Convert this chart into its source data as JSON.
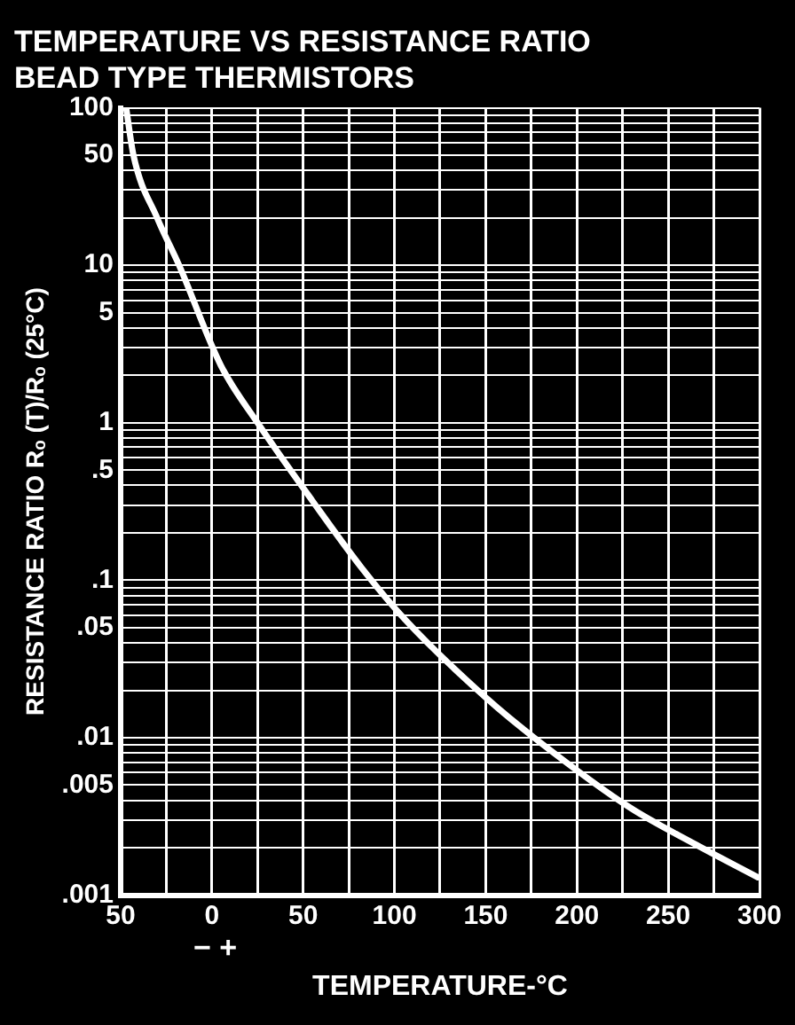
{
  "chart_data": {
    "type": "line",
    "title": "TEMPERATURE VS RESISTANCE RATIO",
    "subtitle": "BEAD TYPE THERMISTORS",
    "xlabel": "TEMPERATURE-°C",
    "ylabel": "RESISTANCE RATIO Rₒ (T)/Rₒ (25°C)",
    "annotations": [
      "− +"
    ],
    "x": [
      -47,
      -43,
      -30,
      -18,
      5,
      25,
      55,
      82,
      106,
      150,
      179,
      229,
      265,
      299
    ],
    "series": [
      {
        "color": "#ffffff",
        "values": [
          100,
          50,
          20,
          10,
          2.3,
          1,
          0.32,
          0.12,
          0.056,
          0.018,
          0.0095,
          0.0036,
          0.0021,
          0.0013
        ]
      }
    ],
    "xlim": [
      -50,
      300
    ],
    "xticks": [
      {
        "value": -50,
        "label": "50"
      },
      {
        "value": -25,
        "label": null
      },
      0,
      {
        "value": 25,
        "label": null
      },
      50,
      {
        "value": 75,
        "label": null
      },
      100,
      {
        "value": 125,
        "label": null
      },
      150,
      {
        "value": 175,
        "label": null
      },
      200,
      {
        "value": 225,
        "label": null
      },
      250,
      {
        "value": 275,
        "label": null
      },
      300
    ],
    "ylim": [
      0.001,
      100
    ],
    "yticks": [
      {
        "value": 0.001,
        "label": ".001"
      },
      {
        "value": 0.002,
        "label": null
      },
      {
        "value": 0.003,
        "label": null
      },
      {
        "value": 0.004,
        "label": null
      },
      {
        "value": 0.005,
        "label": ".005"
      },
      {
        "value": 0.006,
        "label": null
      },
      {
        "value": 0.007,
        "label": null
      },
      {
        "value": 0.008,
        "label": null
      },
      {
        "value": 0.009,
        "label": null
      },
      {
        "value": 0.01,
        "label": ".01"
      },
      {
        "value": 0.02,
        "label": null
      },
      {
        "value": 0.03,
        "label": null
      },
      {
        "value": 0.04,
        "label": null
      },
      {
        "value": 0.05,
        "label": ".05"
      },
      {
        "value": 0.06,
        "label": null
      },
      {
        "value": 0.07,
        "label": null
      },
      {
        "value": 0.08,
        "label": null
      },
      {
        "value": 0.09,
        "label": null
      },
      {
        "value": 0.1,
        "label": ".1"
      },
      {
        "value": 0.2,
        "label": null
      },
      {
        "value": 0.3,
        "label": null
      },
      {
        "value": 0.4,
        "label": null
      },
      {
        "value": 0.5,
        "label": ".5"
      },
      {
        "value": 0.6,
        "label": null
      },
      {
        "value": 0.7,
        "label": null
      },
      {
        "value": 0.8,
        "label": null
      },
      {
        "value": 0.9,
        "label": null
      },
      {
        "value": 1,
        "label": "1"
      },
      {
        "value": 2,
        "label": null
      },
      {
        "value": 3,
        "label": null
      },
      {
        "value": 4,
        "label": null
      },
      {
        "value": 5,
        "label": "5"
      },
      {
        "value": 6,
        "label": null
      },
      {
        "value": 7,
        "label": null
      },
      {
        "value": 8,
        "label": null
      },
      {
        "value": 9,
        "label": null
      },
      {
        "value": 10,
        "label": "10"
      },
      {
        "value": 20,
        "label": null
      },
      {
        "value": 30,
        "label": null
      },
      {
        "value": 40,
        "label": null
      },
      {
        "value": 50,
        "label": "50"
      },
      {
        "value": 60,
        "label": null
      },
      {
        "value": 70,
        "label": null
      },
      {
        "value": 80,
        "label": null
      },
      {
        "value": 90,
        "label": null
      },
      {
        "value": 100,
        "label": "100"
      }
    ],
    "log": "y",
    "grid": true,
    "marker": "none",
    "line_style": "solid",
    "legend": false
  }
}
